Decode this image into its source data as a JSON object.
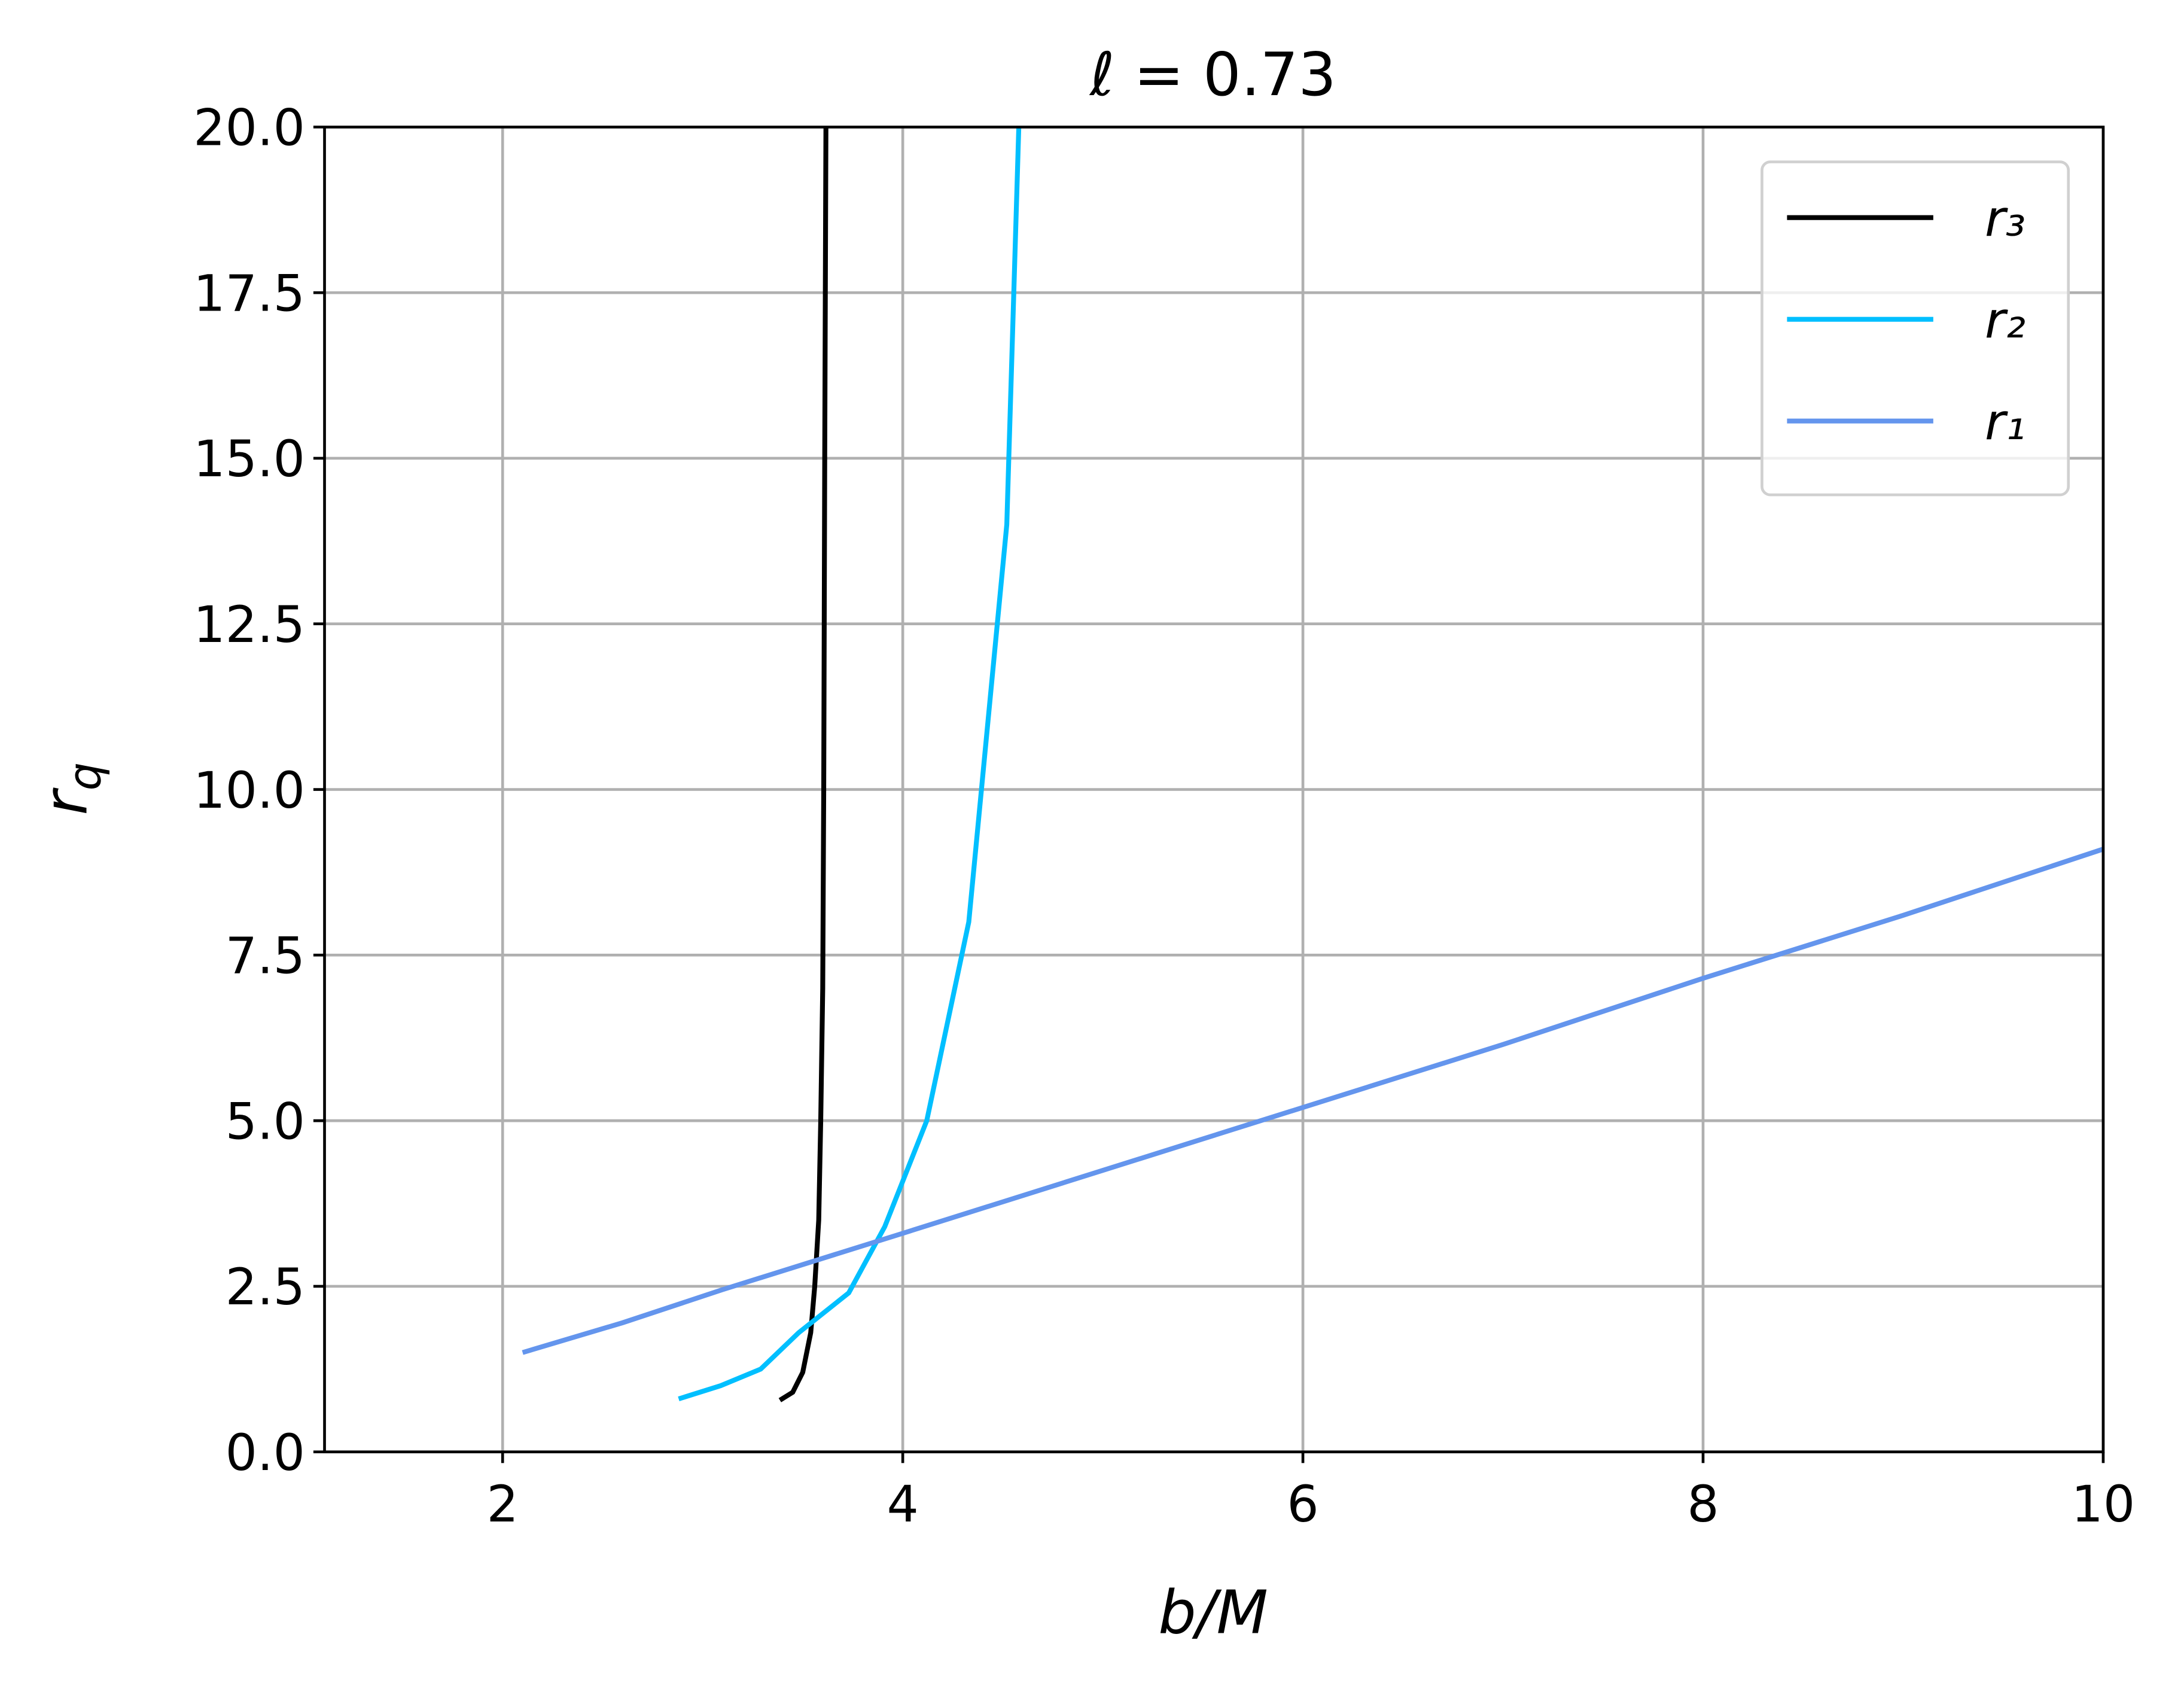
{
  "chart_data": {
    "type": "line",
    "title": "ℓ = 0.73",
    "xlabel": "b/M",
    "ylabel": "rq",
    "xlim": [
      1.11,
      10
    ],
    "ylim": [
      0,
      20
    ],
    "xticks": [
      2,
      4,
      6,
      8,
      10
    ],
    "yticks": [
      {
        "value": 0,
        "label": "0.0"
      },
      2.5,
      {
        "value": 5,
        "label": "5.0"
      },
      7.5,
      {
        "value": 10,
        "label": "10.0"
      },
      12.5,
      {
        "value": 15,
        "label": "15.0"
      },
      17.5,
      {
        "value": 20,
        "label": "20.0"
      }
    ],
    "grid": true,
    "legend": "upper right",
    "series": [
      {
        "name": "r₃",
        "color": "#000000",
        "x": [
          3.386,
          3.45,
          3.5,
          3.54,
          3.56,
          3.58,
          3.59,
          3.6,
          3.605,
          3.61,
          3.616
        ],
        "values": [
          0.78,
          0.9,
          1.2,
          1.8,
          2.5,
          3.5,
          5.0,
          7.0,
          10.0,
          15.0,
          20.0
        ]
      },
      {
        "name": "r₂",
        "color": "#00bfff",
        "x": [
          2.88,
          3.09,
          3.29,
          3.48,
          3.73,
          3.91,
          4.12,
          4.33,
          4.52,
          4.58
        ],
        "values": [
          0.8,
          1.0,
          1.25,
          1.8,
          2.4,
          3.4,
          5.0,
          8.0,
          14.0,
          20.0
        ]
      },
      {
        "name": "r₁",
        "color": "#6495ed",
        "x": [
          2.1,
          2.6,
          3.1,
          4,
          5,
          6,
          7,
          8,
          9,
          10
        ],
        "values": [
          1.5,
          1.95,
          2.45,
          3.3,
          4.25,
          5.2,
          6.15,
          7.15,
          8.1,
          9.1
        ]
      }
    ]
  }
}
